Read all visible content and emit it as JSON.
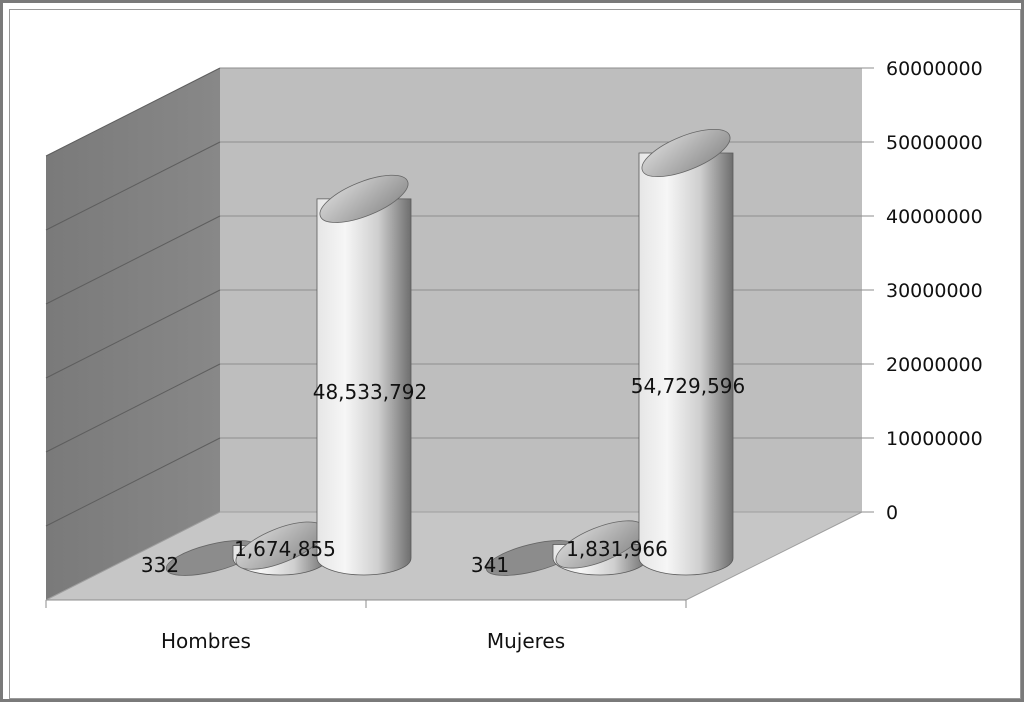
{
  "chart_data": {
    "type": "bar",
    "style": "3d-cylinder",
    "categories": [
      "Hombres",
      "Mujeres"
    ],
    "series": [
      {
        "values": [
          332,
          341
        ]
      },
      {
        "values": [
          1674855,
          1831966
        ]
      },
      {
        "values": [
          48533792,
          54729596
        ]
      }
    ],
    "data_labels": [
      [
        "332",
        "341"
      ],
      [
        "1,674,855",
        "1,831,966"
      ],
      [
        "48,533,792",
        "54,729,596"
      ]
    ],
    "ylim": [
      0,
      60000000
    ],
    "y_ticks": [
      "0",
      "10000000",
      "20000000",
      "30000000",
      "40000000",
      "50000000",
      "60000000"
    ],
    "y_axis_position": "right",
    "grid": true,
    "legend": "none",
    "colors": {
      "back_wall": "#bdbdbd",
      "side_wall": "#7d7d7d",
      "floor": "#c8c8c8",
      "gridline": "#8c8c8c",
      "cylinder_light": "#f2f2f2",
      "cylinder_dark": "#6e6e6e"
    }
  }
}
